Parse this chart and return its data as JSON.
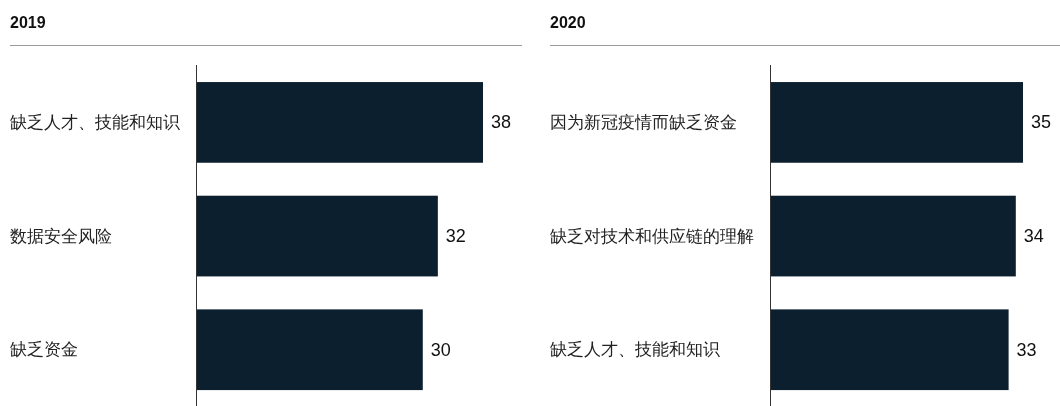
{
  "chart_data": [
    {
      "type": "bar",
      "orientation": "horizontal",
      "title": "2019",
      "categories": [
        "缺乏人才、技能和知识",
        "数据安全风险",
        "缺乏资金"
      ],
      "values": [
        38,
        32,
        30
      ],
      "color": "#0b1f2e",
      "data_labels": true
    },
    {
      "type": "bar",
      "orientation": "horizontal",
      "title": "2020",
      "categories": [
        "因为新冠疫情而缺乏资金",
        "缺乏对技术和供应链的理解",
        "缺乏人才、技能和知识"
      ],
      "values": [
        35,
        34,
        33
      ],
      "color": "#0b1f2e",
      "data_labels": true
    }
  ]
}
